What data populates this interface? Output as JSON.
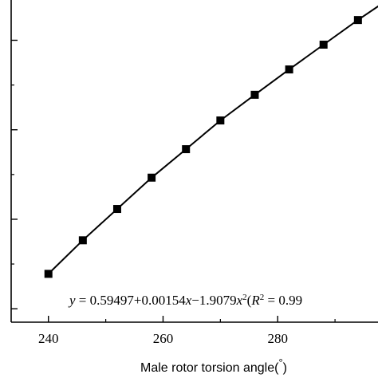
{
  "chart_data": {
    "type": "line",
    "title": "",
    "xlabel": "Male rotor torsion angle(",
    "xlabel_degree": "°",
    "xlabel_close": ")",
    "ylabel": "",
    "xlim": [
      233.5,
      297.5
    ],
    "ylim": [
      0.035,
      0.395
    ],
    "x_ticks": [
      240,
      260,
      280
    ],
    "x_minor_ticks": [
      250,
      270,
      290
    ],
    "y_ticks": [
      0.05,
      0.15,
      0.25,
      0.35
    ],
    "y_minor_ticks": [
      0.1,
      0.2,
      0.3
    ],
    "grid": false,
    "legend": "none",
    "marker": "square",
    "series": [
      {
        "x": [
          240,
          246,
          252,
          258,
          264,
          270,
          276,
          282,
          288,
          294
        ],
        "y": [
          0.089,
          0.1265,
          0.1615,
          0.1965,
          0.2283,
          0.2604,
          0.2891,
          0.3174,
          0.3451,
          0.3726
        ]
      }
    ],
    "color": "#000000",
    "annotation": {
      "parts": [
        {
          "text": "y",
          "style": "italic"
        },
        {
          "text": " = 0.59497+0.00154",
          "style": "normal"
        },
        {
          "text": "x",
          "style": "italic"
        },
        {
          "text": "−1.9079",
          "style": "normal"
        },
        {
          "text": "x",
          "style": "italic"
        },
        {
          "text": "2",
          "style": "sup"
        },
        {
          "text": "(",
          "style": "normal"
        },
        {
          "text": "R",
          "style": "italic"
        },
        {
          "text": "2",
          "style": "sup"
        },
        {
          "text": " = 0.99",
          "style": "normal"
        }
      ]
    }
  }
}
